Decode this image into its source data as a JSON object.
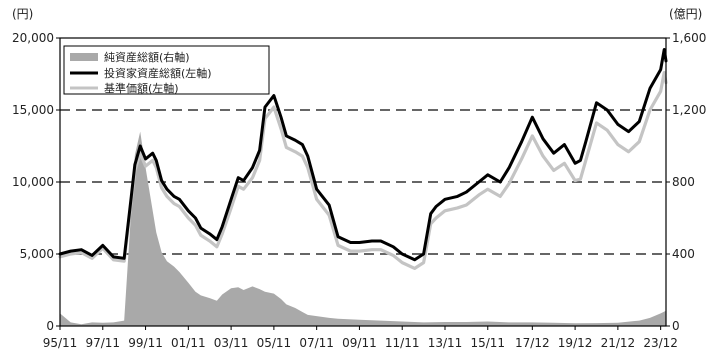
{
  "chart_data": {
    "type": "line",
    "title": "",
    "y_left_unit": "(円)",
    "y_right_unit": "(億円)",
    "x_tick_labels": [
      "95/11",
      "97/11",
      "99/11",
      "01/11",
      "03/11",
      "05/11",
      "07/11",
      "09/11",
      "11/11",
      "13/11",
      "15/11",
      "17/12",
      "19/12",
      "21/12",
      "23/12"
    ],
    "y_left_ticks": [
      "0",
      "5,000",
      "10,000",
      "15,000",
      "20,000"
    ],
    "y_right_ticks": [
      "0",
      "400",
      "800",
      "1,200",
      "1,600"
    ],
    "ylim_left": [
      0,
      20000
    ],
    "ylim_right": [
      0,
      1600
    ],
    "grid": "dashed horizontal lines at 5,000, 10,000 and 15,000",
    "legend_position": "top-left",
    "series": [
      {
        "name": "純資産総額(右軸)",
        "type": "area",
        "axis": "right",
        "color": "#a9a9a9",
        "points": [
          [
            "95/11",
            70
          ],
          [
            "96/05",
            20
          ],
          [
            "96/11",
            10
          ],
          [
            "97/05",
            20
          ],
          [
            "97/11",
            18
          ],
          [
            "98/05",
            20
          ],
          [
            "98/11",
            30
          ],
          [
            "99/03",
            650
          ],
          [
            "99/05",
            950
          ],
          [
            "99/08",
            1080
          ],
          [
            "99/11",
            880
          ],
          [
            "00/03",
            640
          ],
          [
            "00/05",
            520
          ],
          [
            "00/08",
            410
          ],
          [
            "00/11",
            360
          ],
          [
            "01/03",
            330
          ],
          [
            "01/06",
            300
          ],
          [
            "01/11",
            240
          ],
          [
            "02/03",
            190
          ],
          [
            "02/06",
            170
          ],
          [
            "02/11",
            155
          ],
          [
            "03/03",
            140
          ],
          [
            "03/06",
            175
          ],
          [
            "03/11",
            210
          ],
          [
            "04/03",
            215
          ],
          [
            "04/06",
            200
          ],
          [
            "04/11",
            220
          ],
          [
            "05/03",
            205
          ],
          [
            "05/06",
            190
          ],
          [
            "05/11",
            180
          ],
          [
            "06/03",
            150
          ],
          [
            "06/06",
            120
          ],
          [
            "06/11",
            100
          ],
          [
            "07/03",
            78
          ],
          [
            "07/06",
            62
          ],
          [
            "07/11",
            55
          ],
          [
            "08/06",
            45
          ],
          [
            "08/11",
            40
          ],
          [
            "09/11",
            35
          ],
          [
            "10/11",
            30
          ],
          [
            "11/11",
            25
          ],
          [
            "12/11",
            20
          ],
          [
            "13/11",
            22
          ],
          [
            "14/11",
            22
          ],
          [
            "15/11",
            25
          ],
          [
            "16/11",
            20
          ],
          [
            "17/12",
            20
          ],
          [
            "18/12",
            18
          ],
          [
            "19/12",
            15
          ],
          [
            "20/12",
            16
          ],
          [
            "21/12",
            18
          ],
          [
            "22/12",
            30
          ],
          [
            "23/06",
            45
          ],
          [
            "23/12",
            70
          ],
          [
            "24/03",
            85
          ]
        ]
      },
      {
        "name": "投資家資産総額(左軸)",
        "type": "line",
        "axis": "left",
        "color": "#000000",
        "points": [
          [
            "95/11",
            5000
          ],
          [
            "96/05",
            5200
          ],
          [
            "96/11",
            5300
          ],
          [
            "97/05",
            4900
          ],
          [
            "97/11",
            5600
          ],
          [
            "98/05",
            4800
          ],
          [
            "98/11",
            4700
          ],
          [
            "99/03",
            9000
          ],
          [
            "99/05",
            11200
          ],
          [
            "99/08",
            12500
          ],
          [
            "99/11",
            11600
          ],
          [
            "00/03",
            12000
          ],
          [
            "00/05",
            11500
          ],
          [
            "00/08",
            10100
          ],
          [
            "00/11",
            9500
          ],
          [
            "01/03",
            9000
          ],
          [
            "01/06",
            8800
          ],
          [
            "01/11",
            8000
          ],
          [
            "02/03",
            7500
          ],
          [
            "02/06",
            6800
          ],
          [
            "02/11",
            6400
          ],
          [
            "03/03",
            6000
          ],
          [
            "03/06",
            6900
          ],
          [
            "03/11",
            8800
          ],
          [
            "04/03",
            10300
          ],
          [
            "04/06",
            10100
          ],
          [
            "04/11",
            11000
          ],
          [
            "05/03",
            12200
          ],
          [
            "05/06",
            15200
          ],
          [
            "05/11",
            16000
          ],
          [
            "06/03",
            14500
          ],
          [
            "06/06",
            13200
          ],
          [
            "06/11",
            12900
          ],
          [
            "07/03",
            12600
          ],
          [
            "07/06",
            11800
          ],
          [
            "07/11",
            9500
          ],
          [
            "08/06",
            8400
          ],
          [
            "08/11",
            6200
          ],
          [
            "09/06",
            5800
          ],
          [
            "09/11",
            5800
          ],
          [
            "10/06",
            5900
          ],
          [
            "10/11",
            5900
          ],
          [
            "11/06",
            5500
          ],
          [
            "11/11",
            5000
          ],
          [
            "12/06",
            4600
          ],
          [
            "12/11",
            5000
          ],
          [
            "13/03",
            7800
          ],
          [
            "13/06",
            8300
          ],
          [
            "13/11",
            8800
          ],
          [
            "14/06",
            9000
          ],
          [
            "14/11",
            9300
          ],
          [
            "15/06",
            10000
          ],
          [
            "15/11",
            10500
          ],
          [
            "16/06",
            10000
          ],
          [
            "16/11",
            11000
          ],
          [
            "17/06",
            12800
          ],
          [
            "17/12",
            14500
          ],
          [
            "18/06",
            13000
          ],
          [
            "18/12",
            12000
          ],
          [
            "19/06",
            12600
          ],
          [
            "19/12",
            11300
          ],
          [
            "20/03",
            11500
          ],
          [
            "20/06",
            12800
          ],
          [
            "20/12",
            15500
          ],
          [
            "21/06",
            15000
          ],
          [
            "21/12",
            14000
          ],
          [
            "22/06",
            13500
          ],
          [
            "22/12",
            14200
          ],
          [
            "23/06",
            16500
          ],
          [
            "23/12",
            17800
          ],
          [
            "24/02",
            19200
          ],
          [
            "24/03",
            18400
          ]
        ]
      },
      {
        "name": "基準価額(左軸)",
        "type": "line",
        "axis": "left",
        "color": "#c4c4c4",
        "points": [
          [
            "95/11",
            4800
          ],
          [
            "96/05",
            5000
          ],
          [
            "96/11",
            5100
          ],
          [
            "97/05",
            4700
          ],
          [
            "97/11",
            5400
          ],
          [
            "98/05",
            4600
          ],
          [
            "98/11",
            4500
          ],
          [
            "99/03",
            8700
          ],
          [
            "99/05",
            10800
          ],
          [
            "99/08",
            12000
          ],
          [
            "99/11",
            11100
          ],
          [
            "00/03",
            11500
          ],
          [
            "00/05",
            11000
          ],
          [
            "00/08",
            9600
          ],
          [
            "00/11",
            9000
          ],
          [
            "01/03",
            8500
          ],
          [
            "01/06",
            8300
          ],
          [
            "01/11",
            7500
          ],
          [
            "02/03",
            7000
          ],
          [
            "02/06",
            6300
          ],
          [
            "02/11",
            5900
          ],
          [
            "03/03",
            5500
          ],
          [
            "03/06",
            6400
          ],
          [
            "03/11",
            8200
          ],
          [
            "04/03",
            9700
          ],
          [
            "04/06",
            9500
          ],
          [
            "04/11",
            10300
          ],
          [
            "05/03",
            11500
          ],
          [
            "05/06",
            14400
          ],
          [
            "05/11",
            15200
          ],
          [
            "06/03",
            13700
          ],
          [
            "06/06",
            12400
          ],
          [
            "06/11",
            12100
          ],
          [
            "07/03",
            11800
          ],
          [
            "07/06",
            11000
          ],
          [
            "07/11",
            8800
          ],
          [
            "08/06",
            7700
          ],
          [
            "08/11",
            5600
          ],
          [
            "09/06",
            5200
          ],
          [
            "09/11",
            5200
          ],
          [
            "10/06",
            5300
          ],
          [
            "10/11",
            5300
          ],
          [
            "11/06",
            4900
          ],
          [
            "11/11",
            4400
          ],
          [
            "12/06",
            4000
          ],
          [
            "12/11",
            4400
          ],
          [
            "13/03",
            7100
          ],
          [
            "13/06",
            7500
          ],
          [
            "13/11",
            8000
          ],
          [
            "14/06",
            8200
          ],
          [
            "14/11",
            8400
          ],
          [
            "15/06",
            9100
          ],
          [
            "15/11",
            9500
          ],
          [
            "16/06",
            9000
          ],
          [
            "16/11",
            9900
          ],
          [
            "17/06",
            11600
          ],
          [
            "17/12",
            13200
          ],
          [
            "18/06",
            11800
          ],
          [
            "18/12",
            10800
          ],
          [
            "19/06",
            11300
          ],
          [
            "19/12",
            10100
          ],
          [
            "20/03",
            10200
          ],
          [
            "20/06",
            11500
          ],
          [
            "20/12",
            14100
          ],
          [
            "21/06",
            13600
          ],
          [
            "21/12",
            12600
          ],
          [
            "22/06",
            12100
          ],
          [
            "22/12",
            12800
          ],
          [
            "23/06",
            15000
          ],
          [
            "23/12",
            16300
          ],
          [
            "24/02",
            17600
          ],
          [
            "24/03",
            16900
          ]
        ]
      }
    ]
  }
}
